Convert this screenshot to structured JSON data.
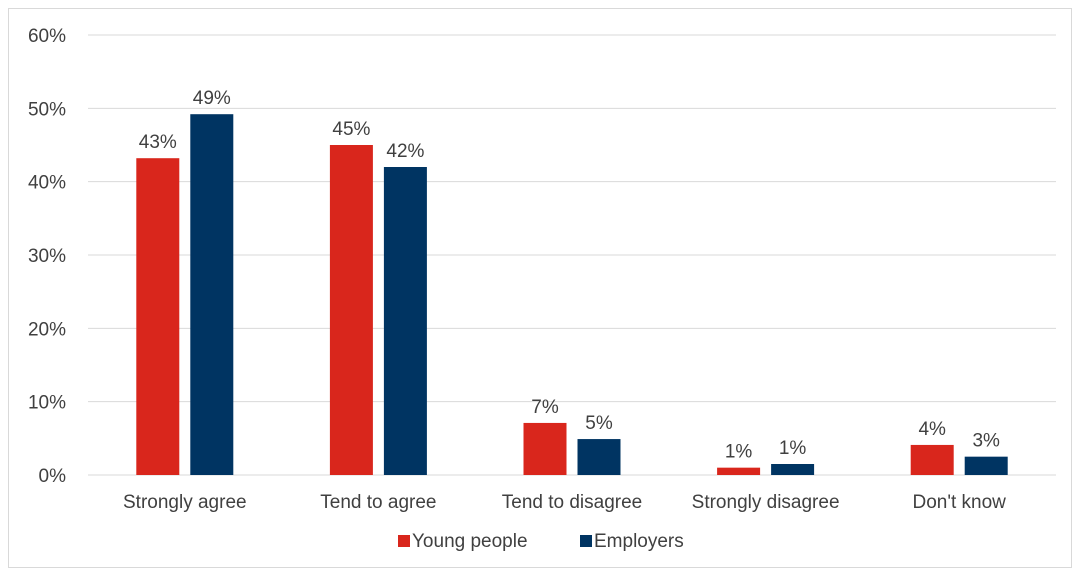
{
  "chart_data": {
    "type": "bar",
    "categories": [
      "Strongly agree",
      "Tend to agree",
      "Tend to disagree",
      "Strongly disagree",
      "Don't know"
    ],
    "series": [
      {
        "name": "Young people",
        "color": "#d9261c",
        "values": [
          43.2,
          45.0,
          7.1,
          1.0,
          4.1
        ],
        "labels": [
          "43%",
          "45%",
          "7%",
          "1%",
          "4%"
        ]
      },
      {
        "name": "Employers",
        "color": "#003462",
        "values": [
          49.2,
          42.0,
          4.9,
          1.5,
          2.5
        ],
        "labels": [
          "49%",
          "42%",
          "5%",
          "1%",
          "3%"
        ]
      }
    ],
    "ylim": [
      0,
      60
    ],
    "yticks": [
      0,
      10,
      20,
      30,
      40,
      50,
      60
    ],
    "ytick_labels": [
      "0%",
      "10%",
      "20%",
      "30%",
      "40%",
      "50%",
      "60%"
    ],
    "grid": true,
    "legend_position": "bottom"
  }
}
